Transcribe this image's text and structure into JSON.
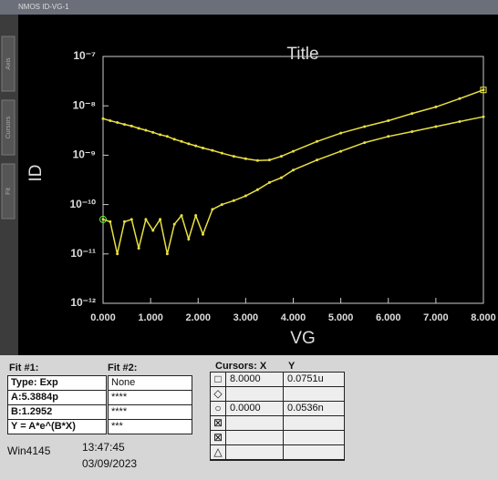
{
  "window": {
    "title": "NMOS ID-VG-1",
    "tabs": [
      "Axis",
      "Cursors",
      "Fit"
    ]
  },
  "chart_data": {
    "type": "line",
    "title": "Title",
    "x_label": "VG",
    "y_label": "ID",
    "log_y": true,
    "x": [
      0,
      0.15,
      0.3,
      0.45,
      0.6,
      0.75,
      0.9,
      1.05,
      1.2,
      1.35,
      1.5,
      1.65,
      1.8,
      1.95,
      2.1,
      2.3,
      2.5,
      2.75,
      3,
      3.25,
      3.5,
      3.75,
      4,
      4.5,
      5,
      5.5,
      6,
      6.5,
      7,
      7.5,
      8
    ],
    "series": [
      {
        "name": "ID upper",
        "color": "#e8e040",
        "values": [
          5.5e-09,
          5e-09,
          4.6e-09,
          4.2e-09,
          3.9e-09,
          3.5e-09,
          3.2e-09,
          2.9e-09,
          2.6e-09,
          2.4e-09,
          2.1e-09,
          1.9e-09,
          1.7e-09,
          1.55e-09,
          1.4e-09,
          1.25e-09,
          1.1e-09,
          9.5e-10,
          8.5e-10,
          7.8e-10,
          8e-10,
          9.5e-10,
          1.2e-09,
          1.9e-09,
          2.8e-09,
          3.8e-09,
          5e-09,
          7e-09,
          9.5e-09,
          1.4e-08,
          2.1e-08
        ]
      },
      {
        "name": "ID lower",
        "color": "#e8e040",
        "values": [
          5e-11,
          4.5e-11,
          1e-11,
          4.5e-11,
          5e-11,
          1.3e-11,
          5e-11,
          3e-11,
          5e-11,
          1e-11,
          4e-11,
          6e-11,
          2e-11,
          6e-11,
          2.5e-11,
          8e-11,
          1e-10,
          1.2e-10,
          1.5e-10,
          2e-10,
          2.8e-10,
          3.5e-10,
          5e-10,
          8e-10,
          1.2e-09,
          1.8e-09,
          2.4e-09,
          3e-09,
          3.8e-09,
          4.8e-09,
          6e-09
        ]
      }
    ],
    "xlim": [
      0,
      8
    ],
    "xticks": [
      {
        "value": 0,
        "label": "0.000"
      },
      {
        "value": 1,
        "label": "1.000"
      },
      {
        "value": 2,
        "label": "2.000"
      },
      {
        "value": 3,
        "label": "3.000"
      },
      {
        "value": 4,
        "label": "4.000"
      },
      {
        "value": 5,
        "label": "5.000"
      },
      {
        "value": 6,
        "label": "6.000"
      },
      {
        "value": 7,
        "label": "7.000"
      },
      {
        "value": 8,
        "label": "8.000"
      }
    ],
    "ylim": [
      1e-12,
      1e-07
    ],
    "yticks": [
      {
        "value": 1e-12,
        "label": "10⁻¹²"
      },
      {
        "value": 1e-11,
        "label": "10⁻¹¹"
      },
      {
        "value": 1e-10,
        "label": "10⁻¹⁰"
      },
      {
        "value": 1e-09,
        "label": "10⁻⁹"
      },
      {
        "value": 1e-08,
        "label": "10⁻⁸"
      },
      {
        "value": 1e-07,
        "label": "10⁻⁷"
      }
    ]
  },
  "fit1": {
    "title": "Fit #1:",
    "rows": [
      "Type: Exp",
      "A:5.3884p",
      "B:1.2952",
      "Y = A*e^(B*X)"
    ]
  },
  "fit2": {
    "title": "Fit #2:",
    "rows": [
      "None",
      "****",
      "****",
      "***"
    ]
  },
  "cursors": {
    "header_x": "Cursors: X",
    "header_y": "Y",
    "rows": [
      [
        "8.0000",
        "0.0751u"
      ],
      [
        "0.0000",
        "0.0536n"
      ]
    ]
  },
  "footer": {
    "station": "Win4145",
    "time": "13:47:45",
    "date": "03/09/2023"
  }
}
